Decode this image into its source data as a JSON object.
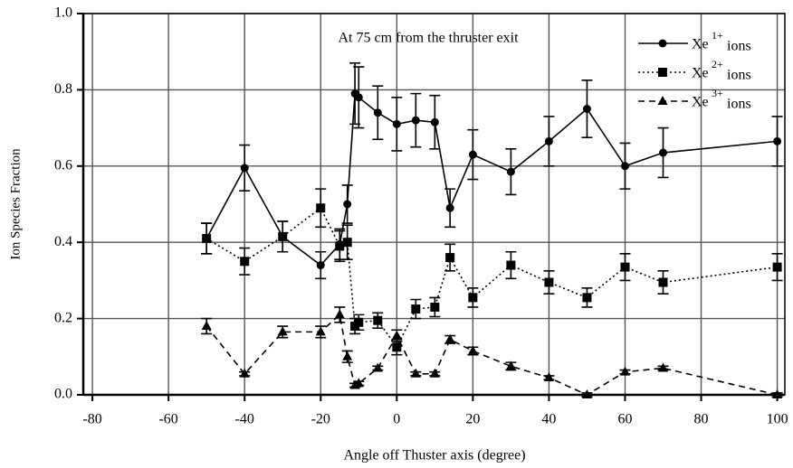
{
  "chart_data": {
    "type": "line",
    "annotation": "At 75 cm from the thruster exit",
    "xlabel": "Angle off Thuster axis (degree)",
    "ylabel": "Ion Species Fraction",
    "xlim": [
      -82.4,
      102
    ],
    "ylim": [
      0,
      1
    ],
    "xticks": [
      -80,
      -60,
      -40,
      -20,
      0,
      20,
      40,
      60,
      80,
      100
    ],
    "yticks": [
      {
        "value": 0,
        "label": "0.0"
      },
      0.2,
      0.4,
      0.6,
      0.8,
      {
        "value": 1,
        "label": "1.0"
      }
    ],
    "grid": true,
    "legend": "upper right",
    "series": [
      {
        "name": "Xe",
        "superscript": "1+",
        "name_suffix": "ions",
        "color": "#000000",
        "marker": "circle",
        "line_style": "solid",
        "x": [
          -50,
          -40,
          -30,
          -20,
          -15,
          -13,
          -11,
          -10,
          -5,
          0,
          5,
          10,
          14,
          20,
          30,
          40,
          50,
          60,
          70,
          100
        ],
        "values": [
          0.41,
          0.595,
          0.415,
          0.34,
          0.395,
          0.5,
          0.79,
          0.78,
          0.74,
          0.71,
          0.72,
          0.715,
          0.49,
          0.63,
          0.585,
          0.665,
          0.75,
          0.6,
          0.635,
          0.665
        ],
        "errors": [
          0.04,
          0.06,
          0.04,
          0.035,
          0.04,
          0.05,
          0.08,
          0.08,
          0.07,
          0.07,
          0.07,
          0.07,
          0.05,
          0.065,
          0.06,
          0.065,
          0.075,
          0.06,
          0.065,
          0.065
        ]
      },
      {
        "name": "Xe",
        "superscript": "2+",
        "name_suffix": "ions",
        "color": "#000000",
        "marker": "square",
        "line_style": "dotted",
        "x": [
          -50,
          -40,
          -30,
          -20,
          -15,
          -13,
          -11,
          -10,
          -5,
          0,
          5,
          10,
          14,
          20,
          30,
          40,
          50,
          60,
          70,
          100
        ],
        "values": [
          0.41,
          0.35,
          0.415,
          0.49,
          0.39,
          0.4,
          0.18,
          0.19,
          0.195,
          0.125,
          0.225,
          0.23,
          0.36,
          0.255,
          0.34,
          0.295,
          0.255,
          0.335,
          0.295,
          0.335
        ],
        "errors": [
          0.04,
          0.035,
          0.04,
          0.05,
          0.04,
          0.045,
          0.02,
          0.02,
          0.02,
          0.02,
          0.025,
          0.025,
          0.035,
          0.025,
          0.035,
          0.03,
          0.025,
          0.035,
          0.03,
          0.035
        ]
      },
      {
        "name": "Xe",
        "superscript": "3+",
        "name_suffix": "ions",
        "color": "#000000",
        "marker": "triangle",
        "line_style": "dashed",
        "x": [
          -50,
          -40,
          -30,
          -20,
          -15,
          -13,
          -11,
          -10,
          -5,
          0,
          5,
          10,
          14,
          20,
          30,
          40,
          50,
          60,
          70,
          100
        ],
        "values": [
          0.18,
          0.055,
          0.165,
          0.165,
          0.21,
          0.1,
          0.025,
          0.03,
          0.07,
          0.155,
          0.055,
          0.055,
          0.145,
          0.115,
          0.075,
          0.045,
          0,
          0.06,
          0.07,
          0
        ],
        "errors": [
          0.02,
          0.005,
          0.015,
          0.015,
          0.02,
          0.015,
          0.005,
          0.005,
          0.005,
          0.015,
          0.005,
          0.005,
          0.01,
          0.01,
          0.01,
          0.005,
          0.005,
          0.005,
          0.005,
          0.005
        ]
      }
    ]
  }
}
